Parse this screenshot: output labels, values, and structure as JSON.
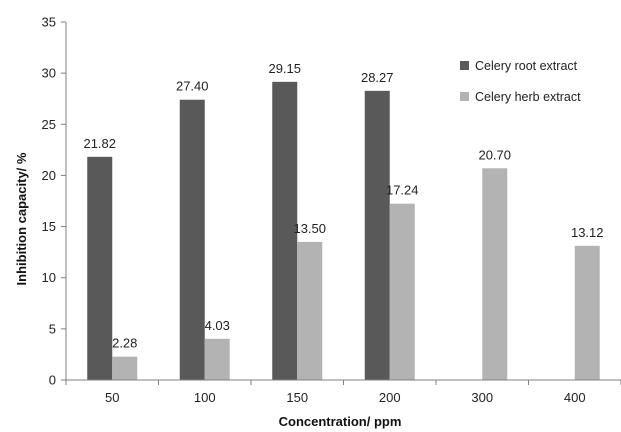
{
  "chart_data": {
    "type": "bar",
    "title": "",
    "xlabel": "Concentration/ ppm",
    "ylabel": "Inhibition capacity/ %",
    "ylim": [
      0,
      35
    ],
    "yticks": [
      0,
      5,
      10,
      15,
      20,
      25,
      30,
      35
    ],
    "grid": false,
    "legend_position": "top-right",
    "categories": [
      "50",
      "100",
      "150",
      "200",
      "300",
      "400"
    ],
    "series": [
      {
        "name": "Celery root extract",
        "color": "#595959",
        "values": [
          21.82,
          27.4,
          29.15,
          28.27,
          null,
          null
        ],
        "labels": [
          "21.82",
          "27.40",
          "29.15",
          "28.27",
          "",
          ""
        ]
      },
      {
        "name": "Celery herb extract",
        "color": "#b3b3b3",
        "values": [
          2.28,
          4.03,
          13.5,
          17.24,
          20.7,
          13.12
        ],
        "labels": [
          "2.28",
          "4.03",
          "13.50",
          "17.24",
          "20.70",
          "13.12"
        ]
      }
    ]
  }
}
